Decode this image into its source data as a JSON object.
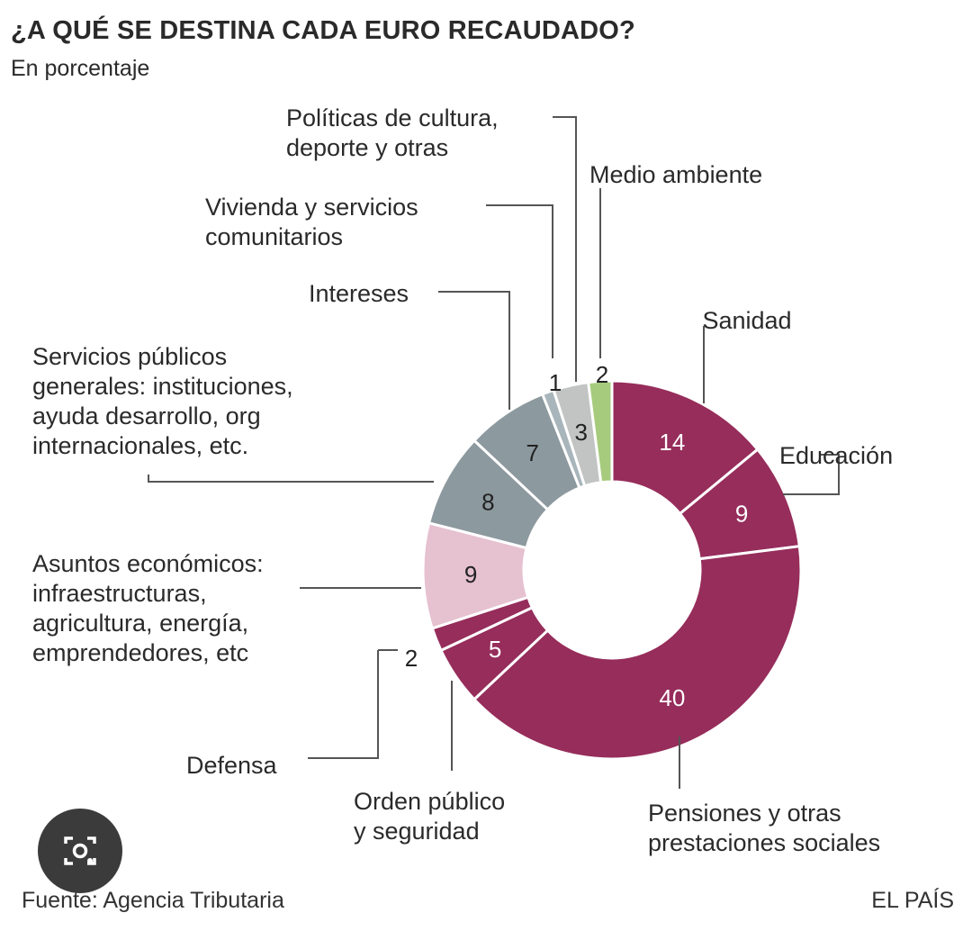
{
  "header": {
    "title": "¿A QUÉ SE DESTINA CADA EURO RECAUDADO?",
    "subtitle": "En porcentaje"
  },
  "footer": {
    "source": "Fuente: Agencia Tributaria",
    "brand": "EL PAÍS"
  },
  "lens_button": {
    "icon": "camera-search-icon"
  },
  "colors": {
    "social": "#962d5b",
    "economic": "#e6c1d0",
    "general": "#8c999f",
    "light_gray": "#a8b5bb",
    "culture": "#c2c4c4",
    "environment": "#a7cb7d",
    "leader": "#555555"
  },
  "chart_data": {
    "type": "pie",
    "donut": true,
    "title": "¿A QUÉ SE DESTINA CADA EURO RECAUDADO?",
    "subtitle": "En porcentaje",
    "unit": "%",
    "start": "12 o'clock, clockwise",
    "slices": [
      {
        "key": "sanidad",
        "label": [
          "Sanidad"
        ],
        "value": 14,
        "value_label": "14",
        "color": "#962d5b",
        "value_color": "#ffffff",
        "value_inside": true
      },
      {
        "key": "educacion",
        "label": [
          "Educación"
        ],
        "value": 9,
        "value_label": "9",
        "color": "#962d5b",
        "value_color": "#ffffff",
        "value_inside": true
      },
      {
        "key": "pensiones",
        "label": [
          "Pensiones y otras",
          "prestaciones sociales"
        ],
        "value": 40,
        "value_label": "40",
        "color": "#962d5b",
        "value_color": "#ffffff",
        "value_inside": true
      },
      {
        "key": "orden",
        "label": [
          "Orden público",
          "y seguridad"
        ],
        "value": 5,
        "value_label": "5",
        "color": "#962d5b",
        "value_color": "#ffffff",
        "value_inside": true
      },
      {
        "key": "defensa",
        "label": [
          "Defensa"
        ],
        "value": 2,
        "value_label": "2",
        "color": "#962d5b",
        "value_color": "#222222",
        "value_inside": false
      },
      {
        "key": "economicos",
        "label": [
          "Asuntos económicos:",
          "infraestructuras,",
          "agricultura, energía,",
          "emprendedores, etc"
        ],
        "value": 9,
        "value_label": "9",
        "color": "#e6c1d0",
        "value_color": "#222222",
        "value_inside": true
      },
      {
        "key": "generales",
        "label": [
          "Servicios públicos",
          "generales: instituciones,",
          "ayuda desarrollo, org",
          "internacionales, etc."
        ],
        "value": 8,
        "value_label": "8",
        "color": "#8c999f",
        "value_color": "#222222",
        "value_inside": true
      },
      {
        "key": "intereses",
        "label": [
          "Intereses"
        ],
        "value": 7,
        "value_label": "7",
        "color": "#8c999f",
        "value_color": "#222222",
        "value_inside": true
      },
      {
        "key": "vivienda",
        "label": [
          "Vivienda y  servicios",
          "comunitarios"
        ],
        "value": 1,
        "value_label": "1",
        "color": "#a8b5bb",
        "value_color": "#222222",
        "value_inside": false
      },
      {
        "key": "cultura",
        "label": [
          "Políticas de cultura,",
          "deporte y otras"
        ],
        "value": 3,
        "value_label": "3",
        "color": "#c2c4c4",
        "value_color": "#222222",
        "value_inside": true
      },
      {
        "key": "medio",
        "label": [
          "Medio ambiente"
        ],
        "value": 2,
        "value_label": "2",
        "color": "#a7cb7d",
        "value_color": "#222222",
        "value_inside": false
      }
    ]
  }
}
